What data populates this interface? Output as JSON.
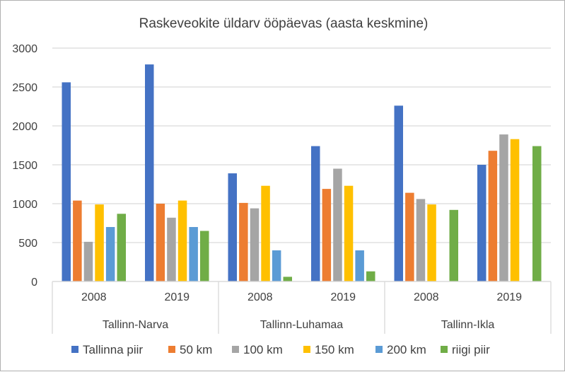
{
  "chart_data": {
    "type": "bar",
    "title": "Raskeveokite üldarv ööpäevas (aasta keskmine)",
    "xlabel": "",
    "ylabel": "",
    "ylim": [
      0,
      3000
    ],
    "yticks": [
      "0",
      "500",
      "1000",
      "1500",
      "2000",
      "2500",
      "3000"
    ],
    "grid": true,
    "legend_position": "bottom",
    "groups": [
      {
        "label": "Tallinn-Narva",
        "categories": [
          "2008",
          "2019"
        ]
      },
      {
        "label": "Tallinn-Luhamaa",
        "categories": [
          "2008",
          "2019"
        ]
      },
      {
        "label": "Tallinn-Ikla",
        "categories": [
          "2008",
          "2019"
        ]
      }
    ],
    "series": [
      {
        "name": "Tallinna piir",
        "color": "#4472C4",
        "values": [
          2560,
          2790,
          1390,
          1740,
          2260,
          1500
        ]
      },
      {
        "name": "50 km",
        "color": "#ED7D31",
        "values": [
          1040,
          1000,
          1010,
          1190,
          1140,
          1680
        ]
      },
      {
        "name": "100 km",
        "color": "#A5A5A5",
        "values": [
          510,
          820,
          940,
          1450,
          1060,
          1890
        ]
      },
      {
        "name": "150 km",
        "color": "#FFC000",
        "values": [
          990,
          1040,
          1230,
          1230,
          990,
          1830
        ]
      },
      {
        "name": "200 km",
        "color": "#5B9BD5",
        "values": [
          700,
          700,
          400,
          400,
          null,
          null
        ]
      },
      {
        "name": "riigi piir",
        "color": "#70AD47",
        "values": [
          870,
          650,
          60,
          130,
          920,
          1740
        ]
      }
    ]
  }
}
